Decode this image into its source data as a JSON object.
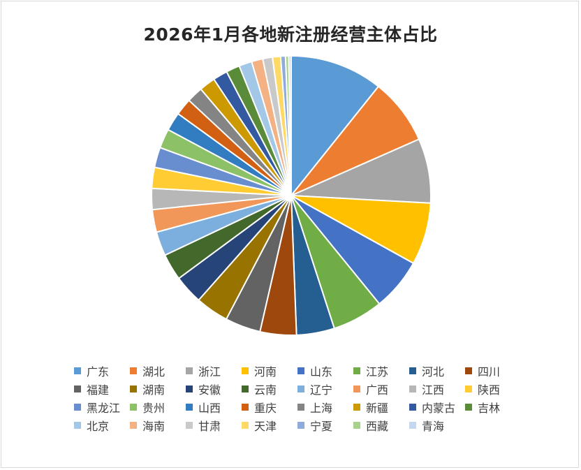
{
  "chart_data": {
    "type": "pie",
    "title": "2026年1月各地新注册经营主体占比",
    "legend_position": "bottom",
    "categories": [
      "广东",
      "湖北",
      "浙江",
      "河南",
      "山东",
      "江苏",
      "河北",
      "四川",
      "福建",
      "湖南",
      "安徽",
      "云南",
      "辽宁",
      "广西",
      "江西",
      "陕西",
      "黑龙江",
      "贵州",
      "山西",
      "重庆",
      "上海",
      "新疆",
      "内蒙古",
      "吉林",
      "北京",
      "海南",
      "甘肃",
      "天津",
      "宁夏",
      "西藏",
      "青海"
    ],
    "values": [
      11.5,
      8.2,
      8.0,
      7.7,
      6.5,
      6.3,
      4.7,
      4.5,
      4.4,
      4.1,
      3.6,
      3.3,
      3.0,
      2.8,
      2.6,
      2.6,
      2.5,
      2.4,
      2.3,
      2.1,
      2.0,
      2.0,
      1.8,
      1.7,
      1.6,
      1.4,
      1.2,
      1.0,
      0.6,
      0.4,
      0.3
    ],
    "colors": [
      "#5b9bd5",
      "#ed7d31",
      "#a5a5a5",
      "#ffc000",
      "#4472c4",
      "#70ad47",
      "#255e91",
      "#9e480e",
      "#636363",
      "#997300",
      "#264478",
      "#43682b",
      "#7cafdd",
      "#f1975a",
      "#b7b7b7",
      "#ffcd33",
      "#698ed0",
      "#8cc168",
      "#327dc2",
      "#d26012",
      "#848484",
      "#cc9a00",
      "#335aa1",
      "#5a8b39",
      "#a3c7e7",
      "#f4b183",
      "#c9c9c9",
      "#ffd966",
      "#8faadc",
      "#a9d18e",
      "#c5d7f0"
    ]
  }
}
